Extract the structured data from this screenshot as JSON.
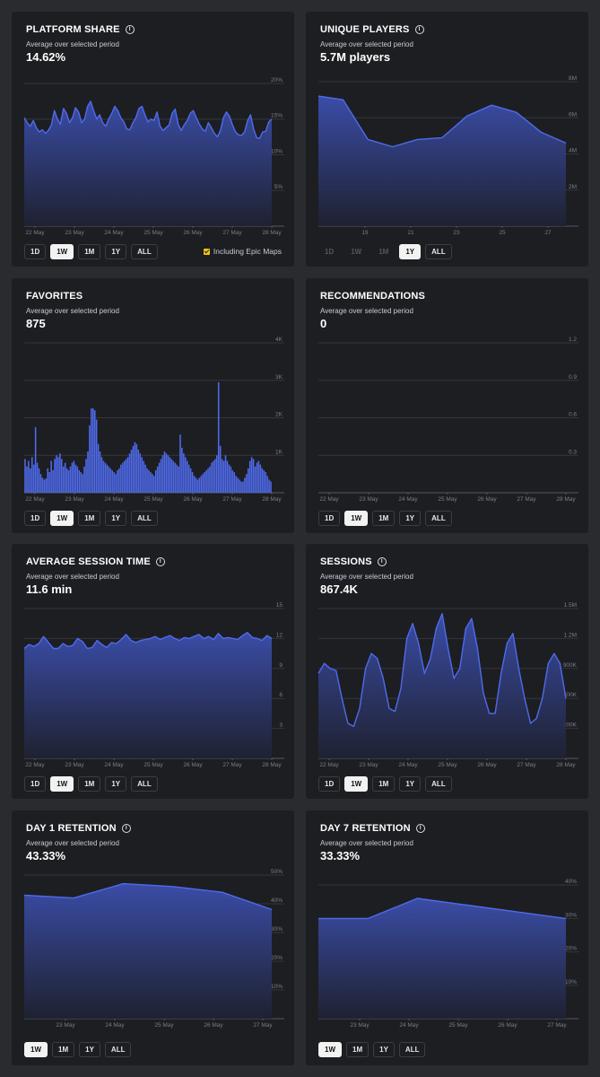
{
  "colors": {
    "accent": "#4f6bed",
    "fill_top": "#3c4fae",
    "fill_bottom": "#1f2233",
    "grid": "#34363d",
    "tick": "#7a7d86"
  },
  "cards": [
    {
      "id": "platform-share",
      "title": "PLATFORM SHARE",
      "info": true,
      "subtitle": "Average over selected period",
      "value": "14.62%",
      "buttons": [
        "1D",
        "1W",
        "1M",
        "1Y",
        "ALL"
      ],
      "active": "1W",
      "dim": [],
      "extra": "Including Epic Maps",
      "chart_data": {
        "type": "area",
        "yticks": [
          "20%",
          "15%",
          "10%",
          "5%"
        ],
        "ytick_vals": [
          20,
          15,
          10,
          5
        ],
        "ymax": 21,
        "xticks": [
          "22 May",
          "23 May",
          "24 May",
          "25 May",
          "26 May",
          "27 May",
          "28 May"
        ],
        "values": [
          15.2,
          14.5,
          14.0,
          14.8,
          13.8,
          13.2,
          13.5,
          13.0,
          13.4,
          14.2,
          16.2,
          15.0,
          14.3,
          16.5,
          15.8,
          14.5,
          15.2,
          16.6,
          16.0,
          14.5,
          15.0,
          16.8,
          17.5,
          16.2,
          15.0,
          15.6,
          14.5,
          14.0,
          15.0,
          15.8,
          16.8,
          16.2,
          15.2,
          14.6,
          13.6,
          13.5,
          14.5,
          15.2,
          16.5,
          16.8,
          15.6,
          14.6,
          15.0,
          14.8,
          16.0,
          14.0,
          13.4,
          13.8,
          14.2,
          15.8,
          16.4,
          14.3,
          13.4,
          14.2,
          14.8,
          15.8,
          16.2,
          15.2,
          14.3,
          13.6,
          13.3,
          14.5,
          13.8,
          13.0,
          12.5,
          13.4,
          15.2,
          16.0,
          15.4,
          14.2,
          13.2,
          12.8,
          12.7,
          13.2,
          14.8,
          15.6,
          13.6,
          12.4,
          12.3,
          13.2,
          13.3,
          14.6,
          15.0
        ]
      }
    },
    {
      "id": "unique-players",
      "title": "UNIQUE PLAYERS",
      "info": true,
      "subtitle": "Average over selected period",
      "value": "5.7M players",
      "buttons": [
        "1D",
        "1W",
        "1M",
        "1Y",
        "ALL"
      ],
      "active": "1Y",
      "dim": [
        "1D",
        "1W",
        "1M"
      ],
      "chart_data": {
        "type": "area",
        "yticks": [
          "8M",
          "6M",
          "4M",
          "2M"
        ],
        "ytick_vals": [
          8,
          6,
          4,
          2
        ],
        "ymax": 8.3,
        "xticks": [
          "19",
          "21",
          "23",
          "25",
          "27"
        ],
        "values": [
          7.2,
          7.0,
          4.8,
          4.4,
          4.8,
          4.9,
          6.1,
          6.7,
          6.3,
          5.2,
          4.6
        ]
      }
    },
    {
      "id": "favorites",
      "title": "FAVORITES",
      "info": false,
      "subtitle": "Average over selected period",
      "value": "875",
      "buttons": [
        "1D",
        "1W",
        "1M",
        "1Y",
        "ALL"
      ],
      "active": "1W",
      "dim": [],
      "chart_data": {
        "type": "bar",
        "yticks": [
          "4K",
          "3K",
          "2K",
          "1K"
        ],
        "ytick_vals": [
          4000,
          3000,
          2000,
          1000
        ],
        "ymax": 4000,
        "xticks": [
          "22 May",
          "23 May",
          "24 May",
          "25 May",
          "26 May",
          "27 May",
          "28 May"
        ],
        "values": [
          900,
          700,
          850,
          650,
          950,
          750,
          1750,
          800,
          650,
          500,
          400,
          350,
          380,
          650,
          550,
          850,
          600,
          900,
          1000,
          950,
          1050,
          900,
          700,
          800,
          650,
          600,
          700,
          800,
          850,
          750,
          700,
          600,
          550,
          500,
          700,
          900,
          1100,
          1800,
          2250,
          2250,
          2200,
          1950,
          1300,
          1100,
          950,
          850,
          800,
          750,
          700,
          650,
          600,
          550,
          500,
          600,
          650,
          750,
          800,
          850,
          900,
          950,
          1050,
          1150,
          1250,
          1350,
          1300,
          1150,
          1050,
          950,
          850,
          750,
          650,
          600,
          550,
          500,
          450,
          600,
          700,
          800,
          900,
          1000,
          1100,
          1050,
          1000,
          950,
          900,
          850,
          800,
          750,
          700,
          1550,
          1200,
          1050,
          950,
          850,
          750,
          650,
          550,
          450,
          400,
          350,
          400,
          450,
          500,
          550,
          600,
          650,
          700,
          800,
          850,
          900,
          1000,
          2950,
          1250,
          900,
          850,
          1000,
          850,
          750,
          700,
          600,
          550,
          450,
          400,
          350,
          300,
          300,
          400,
          500,
          650,
          850,
          950,
          900,
          700,
          800,
          850,
          750,
          650,
          600,
          550,
          450,
          350,
          300
        ]
      }
    },
    {
      "id": "recommendations",
      "title": "RECOMMENDATIONS",
      "info": false,
      "subtitle": "Average over selected period",
      "value": "0",
      "buttons": [
        "1D",
        "1W",
        "1M",
        "1Y",
        "ALL"
      ],
      "active": "1W",
      "dim": [],
      "chart_data": {
        "type": "line",
        "yticks": [
          "1.2",
          "0.9",
          "0.6",
          "0.3"
        ],
        "ytick_vals": [
          1.2,
          0.9,
          0.6,
          0.3
        ],
        "ymax": 1.2,
        "xticks": [
          "22 May",
          "23 May",
          "24 May",
          "25 May",
          "26 May",
          "27 May",
          "28 May"
        ],
        "values": []
      }
    },
    {
      "id": "average-session-time",
      "title": "AVERAGE SESSION TIME",
      "info": true,
      "subtitle": "Average over selected period",
      "value": "11.6 min",
      "buttons": [
        "1D",
        "1W",
        "1M",
        "1Y",
        "ALL"
      ],
      "active": "1W",
      "dim": [],
      "chart_data": {
        "type": "area",
        "yticks": [
          "15",
          "12",
          "9",
          "6",
          "3"
        ],
        "ytick_vals": [
          15,
          12,
          9,
          6,
          3
        ],
        "ymax": 15,
        "xticks": [
          "22 May",
          "23 May",
          "24 May",
          "25 May",
          "26 May",
          "27 May",
          "28 May"
        ],
        "values": [
          11.0,
          11.4,
          11.2,
          11.5,
          12.2,
          11.6,
          11.0,
          11.0,
          11.5,
          11.2,
          11.3,
          12.0,
          11.7,
          11.0,
          11.1,
          11.8,
          11.4,
          11.1,
          11.6,
          11.5,
          11.9,
          12.4,
          11.8,
          11.6,
          11.8,
          11.9,
          12.0,
          12.2,
          11.9,
          12.1,
          12.3,
          12.0,
          11.8,
          12.1,
          12.0,
          12.2,
          12.4,
          12.0,
          12.2,
          11.9,
          12.5,
          12.0,
          12.1,
          12.0,
          11.9,
          12.3,
          12.6,
          12.1,
          12.0,
          11.8,
          12.3,
          12.0
        ]
      }
    },
    {
      "id": "sessions",
      "title": "SESSIONS",
      "info": true,
      "subtitle": "Average over selected period",
      "value": "867.4K",
      "buttons": [
        "1D",
        "1W",
        "1M",
        "1Y",
        "ALL"
      ],
      "active": "1W",
      "dim": [],
      "chart_data": {
        "type": "area",
        "yticks": [
          "1.5M",
          "1.2M",
          "900K",
          "600K",
          "300K"
        ],
        "ytick_vals": [
          1500,
          1200,
          900,
          600,
          300
        ],
        "ymax": 1500,
        "xticks": [
          "22 May",
          "23 May",
          "24 May",
          "25 May",
          "26 May",
          "27 May",
          "28 May"
        ],
        "values": [
          850,
          950,
          900,
          880,
          600,
          350,
          320,
          500,
          900,
          1050,
          1000,
          800,
          500,
          470,
          700,
          1200,
          1350,
          1150,
          850,
          1000,
          1300,
          1450,
          1100,
          800,
          900,
          1300,
          1400,
          1100,
          650,
          450,
          450,
          850,
          1150,
          1250,
          900,
          600,
          350,
          400,
          600,
          950,
          1050,
          950,
          600
        ]
      }
    },
    {
      "id": "day-1-retention",
      "title": "DAY 1 RETENTION",
      "info": true,
      "subtitle": "Average over selected period",
      "value": "43.33%",
      "buttons": [
        "1W",
        "1M",
        "1Y",
        "ALL"
      ],
      "active": "1W",
      "dim": [],
      "chart_data": {
        "type": "area",
        "yticks": [
          "50%",
          "40%",
          "30%",
          "20%",
          "10%"
        ],
        "ytick_vals": [
          50,
          40,
          30,
          20,
          10
        ],
        "ymax": 50,
        "xticks": [
          "23 May",
          "24 May",
          "25 May",
          "26 May",
          "27 May"
        ],
        "values": [
          43,
          42,
          47,
          46,
          44,
          38
        ]
      }
    },
    {
      "id": "day-7-retention",
      "title": "DAY 7 RETENTION",
      "info": true,
      "subtitle": "Average over selected period",
      "value": "33.33%",
      "buttons": [
        "1W",
        "1M",
        "1Y",
        "ALL"
      ],
      "active": "1W",
      "dim": [],
      "chart_data": {
        "type": "area",
        "yticks": [
          "40%",
          "30%",
          "20%",
          "10%"
        ],
        "ytick_vals": [
          40,
          30,
          20,
          10
        ],
        "ymax": 43,
        "xticks": [
          "23 May",
          "24 May",
          "25 May",
          "26 May",
          "27 May"
        ],
        "values": [
          30,
          30,
          36,
          34,
          32,
          30
        ]
      }
    }
  ]
}
